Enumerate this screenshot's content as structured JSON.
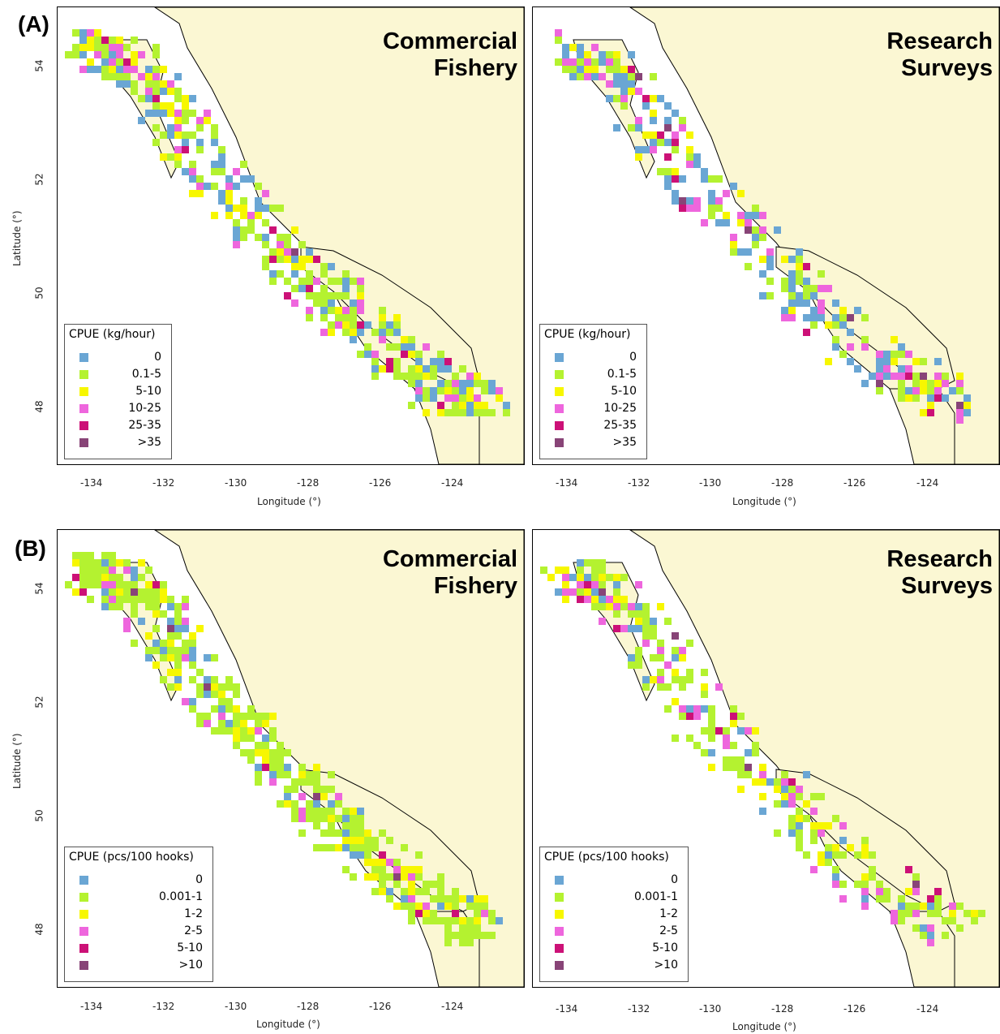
{
  "panels": [
    {
      "label": "(A)",
      "maps": [
        {
          "title_line1": "Commercial",
          "title_line2": "Fishery",
          "legend_title": "CPUE (kg/hour)",
          "legend_items": [
            "0",
            "0.1-5",
            "5-10",
            "10-25",
            "25-35",
            ">35"
          ],
          "x_label": "Longitude (°)",
          "y_label": "Latitude (°)",
          "x_ticks": [
            "-134",
            "-132",
            "-130",
            "-128",
            "-126",
            "-124"
          ],
          "y_ticks": [
            "54",
            "52",
            "50",
            "48"
          ]
        },
        {
          "title_line1": "Research",
          "title_line2": "Surveys",
          "legend_title": "CPUE (kg/hour)",
          "legend_items": [
            "0",
            "0.1-5",
            "5-10",
            "10-25",
            "25-35",
            ">35"
          ],
          "x_label": "Longitude (°)",
          "x_ticks": [
            "-134",
            "-132",
            "-130",
            "-128",
            "-126",
            "-124"
          ]
        }
      ]
    },
    {
      "label": "(B)",
      "maps": [
        {
          "title_line1": "Commercial",
          "title_line2": "Fishery",
          "legend_title": "CPUE (pcs/100 hooks)",
          "legend_items": [
            "0",
            "0.001-1",
            "1-2",
            "2-5",
            "5-10",
            ">10"
          ],
          "x_label": "Longitude (°)",
          "y_label": "Latitude (°)",
          "x_ticks": [
            "-134",
            "-132",
            "-130",
            "-128",
            "-126",
            "-124"
          ],
          "y_ticks": [
            "54",
            "52",
            "50",
            "48"
          ]
        },
        {
          "title_line1": "Research",
          "title_line2": "Surveys",
          "legend_title": "CPUE (pcs/100 hooks)",
          "legend_items": [
            "0",
            "0.001-1",
            "1-2",
            "2-5",
            "5-10",
            ">10"
          ],
          "x_label": "Longitude (°)",
          "x_ticks": [
            "-134",
            "-132",
            "-130",
            "-128",
            "-126",
            "-124"
          ]
        }
      ]
    }
  ],
  "colors": {
    "land": "#fbf7d3",
    "water": "#ffffff",
    "legend": [
      "#6aa6d4",
      "#b4f230",
      "#f7f700",
      "#ee66dd",
      "#cc1177",
      "#884477"
    ]
  }
}
